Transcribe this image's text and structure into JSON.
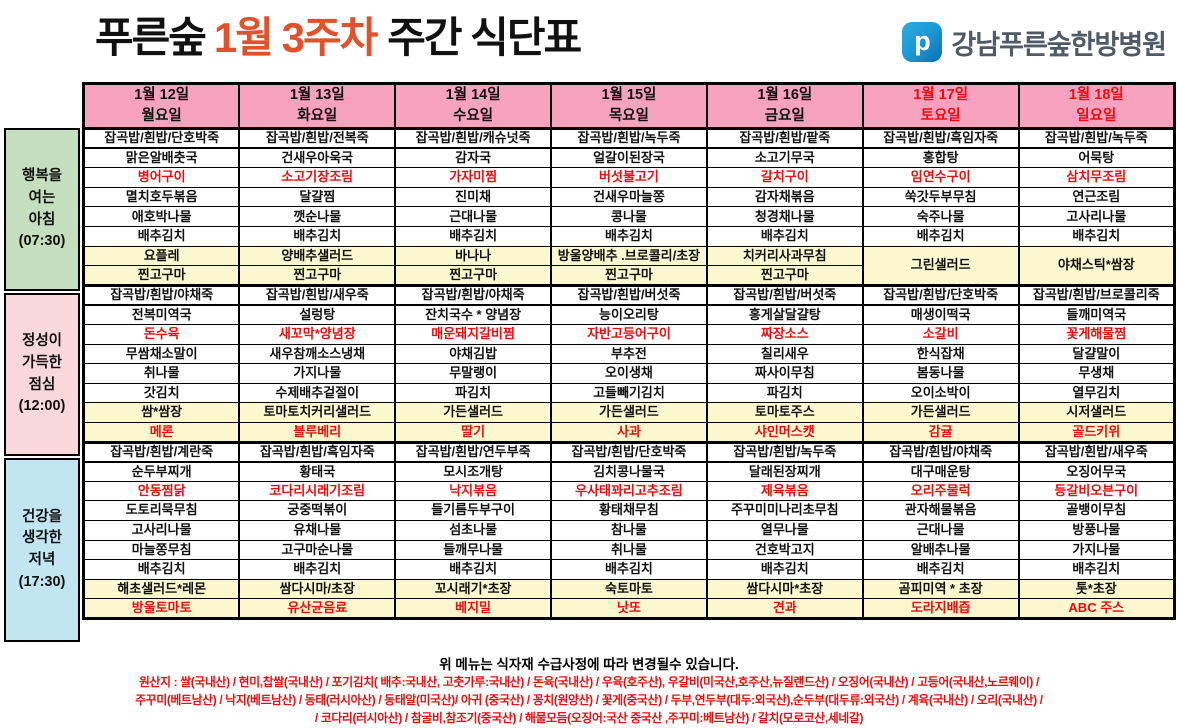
{
  "title": {
    "prefix": "푸른숲",
    "highlight": "1월 3주차",
    "suffix": "주간 식단표"
  },
  "logo": {
    "mark": "p",
    "text": "강남푸른숲한방병원"
  },
  "colors": {
    "header_pink": "#f7a3c0",
    "special_yellow": "#fbf8d0",
    "menu_red": "#f00c0c",
    "title_red": "#e2512b",
    "logo_blue": "#1d9bd8",
    "label_colors": [
      "#c5debe",
      "#f8d8dd",
      "#c1e5f1"
    ]
  },
  "days": [
    {
      "date": "1월 12일",
      "day": "월요일",
      "red": false
    },
    {
      "date": "1월 13일",
      "day": "화요일",
      "red": false
    },
    {
      "date": "1월 14일",
      "day": "수요일",
      "red": false
    },
    {
      "date": "1월 15일",
      "day": "목요일",
      "red": false
    },
    {
      "date": "1월 16일",
      "day": "금요일",
      "red": false
    },
    {
      "date": "1월 17일",
      "day": "토요일",
      "red": true
    },
    {
      "date": "1월 18일",
      "day": "일요일",
      "red": true
    }
  ],
  "meals": [
    {
      "name": "아침",
      "label_lines": [
        "행복을",
        "여는",
        "아침",
        "(07:30)"
      ],
      "cols": [
        {
          "rice": "잡곡밥/흰밥/단호박죽",
          "items": [
            [
              "맑은알배춧국",
              0
            ],
            [
              "병어구이",
              1
            ],
            [
              "멸치호두볶음",
              0
            ],
            [
              "애호박나물",
              0
            ],
            [
              "배추김치",
              0
            ]
          ],
          "specials": [
            [
              "요플레",
              0
            ],
            [
              "찐고구마",
              0
            ]
          ]
        },
        {
          "rice": "잡곡밥/흰밥/전복죽",
          "items": [
            [
              "건새우아욱국",
              0
            ],
            [
              "소고기장조림",
              1
            ],
            [
              "달걀찜",
              0
            ],
            [
              "깻순나물",
              0
            ],
            [
              "배추김치",
              0
            ]
          ],
          "specials": [
            [
              "양배추샐러드",
              0
            ],
            [
              "찐고구마",
              0
            ]
          ]
        },
        {
          "rice": "잡곡밥/흰밥/캐슈넛죽",
          "items": [
            [
              "감자국",
              0
            ],
            [
              "가자미찜",
              1
            ],
            [
              "진미채",
              0
            ],
            [
              "근대나물",
              0
            ],
            [
              "배추김치",
              0
            ]
          ],
          "specials": [
            [
              "바나나",
              0
            ],
            [
              "찐고구마",
              0
            ]
          ]
        },
        {
          "rice": "잡곡밥/흰밥/녹두죽",
          "items": [
            [
              "얼갈이된장국",
              0
            ],
            [
              "버섯불고기",
              1
            ],
            [
              "건새우마늘쫑",
              0
            ],
            [
              "콩나물",
              0
            ],
            [
              "배추김치",
              0
            ]
          ],
          "specials": [
            [
              "방울양배추 .브로콜리/초장",
              0
            ],
            [
              "찐고구마",
              0
            ]
          ]
        },
        {
          "rice": "잡곡밥/흰밥/팥죽",
          "items": [
            [
              "소고기무국",
              0
            ],
            [
              "갈치구이",
              1
            ],
            [
              "감자채볶음",
              0
            ],
            [
              "청경채나물",
              0
            ],
            [
              "배추김치",
              0
            ]
          ],
          "specials": [
            [
              "치커리사과무침",
              0
            ],
            [
              "찐고구마",
              0
            ]
          ]
        },
        {
          "rice": "잡곡밥/흰밥/흑임자죽",
          "items": [
            [
              "홍합탕",
              0
            ],
            [
              "임연수구이",
              1
            ],
            [
              "쑥갓두부무침",
              0
            ],
            [
              "숙주나물",
              0
            ],
            [
              "배추김치",
              0
            ]
          ],
          "specials": [
            [
              "그린샐러드",
              0
            ],
            [
              "",
              0
            ]
          ]
        },
        {
          "rice": "잡곡밥/흰밥/녹두죽",
          "items": [
            [
              "어묵탕",
              0
            ],
            [
              "삼치무조림",
              1
            ],
            [
              "연근조림",
              0
            ],
            [
              "고사리나물",
              0
            ],
            [
              "배추김치",
              0
            ]
          ],
          "specials": [
            [
              "야채스틱*쌈장",
              0
            ],
            [
              "",
              0
            ]
          ]
        }
      ]
    },
    {
      "name": "점심",
      "label_lines": [
        "정성이",
        "가득한",
        "점심",
        "(12:00)"
      ],
      "cols": [
        {
          "rice": "잡곡밥/흰밥/야채죽",
          "items": [
            [
              "전복미역국",
              0
            ],
            [
              "돈수육",
              1
            ],
            [
              "무쌈채소말이",
              0
            ],
            [
              "취나물",
              0
            ],
            [
              "갓김치",
              0
            ]
          ],
          "specials": [
            [
              "쌈*쌈장",
              0
            ],
            [
              "메론",
              1
            ]
          ]
        },
        {
          "rice": "잡곡밥/흰밥/새우죽",
          "items": [
            [
              "설렁탕",
              0
            ],
            [
              "새꼬막*양념장",
              1
            ],
            [
              "새우참깨소스냉채",
              0
            ],
            [
              "가지나물",
              0
            ],
            [
              "수제배추겉절이",
              0
            ]
          ],
          "specials": [
            [
              "토마토치커리샐러드",
              0
            ],
            [
              "블루베리",
              1
            ]
          ]
        },
        {
          "rice": "잡곡밥/흰밥/야채죽",
          "items": [
            [
              "잔치국수 * 양념장",
              0
            ],
            [
              "매운돼지갈비찜",
              1
            ],
            [
              "야채김밥",
              0
            ],
            [
              "무말랭이",
              0
            ],
            [
              "파김치",
              0
            ]
          ],
          "specials": [
            [
              "가든샐러드",
              0
            ],
            [
              "딸기",
              1
            ]
          ]
        },
        {
          "rice": "잡곡밥/흰밥/버섯죽",
          "items": [
            [
              "능이오리탕",
              0
            ],
            [
              "자반고등어구이",
              1
            ],
            [
              "부추전",
              0
            ],
            [
              "오이생채",
              0
            ],
            [
              "고들빼기김치",
              0
            ]
          ],
          "specials": [
            [
              "가든샐러드",
              0
            ],
            [
              "사과",
              1
            ]
          ]
        },
        {
          "rice": "잡곡밥/흰밥/버섯죽",
          "items": [
            [
              "홍게살달걀탕",
              0
            ],
            [
              "짜장소스",
              1
            ],
            [
              "칠리새우",
              0
            ],
            [
              "짜사이무침",
              0
            ],
            [
              "파김치",
              0
            ]
          ],
          "specials": [
            [
              "토마토주스",
              0
            ],
            [
              "샤인머스캣",
              1
            ]
          ]
        },
        {
          "rice": "잡곡밥/흰밥/단호박죽",
          "items": [
            [
              "매생이떡국",
              0
            ],
            [
              "소갈비",
              1
            ],
            [
              "한식잡채",
              0
            ],
            [
              "봄동나물",
              0
            ],
            [
              "오이소박이",
              0
            ]
          ],
          "specials": [
            [
              "가든샐러드",
              0
            ],
            [
              "감귤",
              1
            ]
          ]
        },
        {
          "rice": "잡곡밥/흰밥/브로콜리죽",
          "items": [
            [
              "들깨미역국",
              0
            ],
            [
              "꽃게해물찜",
              1
            ],
            [
              "달걀말이",
              0
            ],
            [
              "무생채",
              0
            ],
            [
              "열무김치",
              0
            ]
          ],
          "specials": [
            [
              "시저샐러드",
              0
            ],
            [
              "골드키위",
              1
            ]
          ]
        }
      ]
    },
    {
      "name": "저녁",
      "label_lines": [
        "건강을",
        "생각한",
        "저녁",
        "(17:30)"
      ],
      "cols": [
        {
          "rice": "잡곡밥/흰밥/계란죽",
          "items": [
            [
              "순두부찌개",
              0
            ],
            [
              "안동찜닭",
              1
            ],
            [
              "도토리묵무침",
              0
            ],
            [
              "고사리나물",
              0
            ],
            [
              "마늘쫑무침",
              0
            ],
            [
              "배추김치",
              0
            ]
          ],
          "specials": [
            [
              "해초샐러드*레몬",
              0
            ],
            [
              "방울토마토",
              1
            ]
          ]
        },
        {
          "rice": "잡곡밥/흰밥/흑임자죽",
          "items": [
            [
              "황태국",
              0
            ],
            [
              "코다리시래기조림",
              1
            ],
            [
              "궁중떡볶이",
              0
            ],
            [
              "유채나물",
              0
            ],
            [
              "고구마순나물",
              0
            ],
            [
              "배추김치",
              0
            ]
          ],
          "specials": [
            [
              "쌈다시마/초장",
              0
            ],
            [
              "유산균음료",
              1
            ]
          ]
        },
        {
          "rice": "잡곡밥/흰밥/연두부죽",
          "items": [
            [
              "모시조개탕",
              0
            ],
            [
              "낙지볶음",
              1
            ],
            [
              "들기름두부구이",
              0
            ],
            [
              "섬초나물",
              0
            ],
            [
              "들깨무나물",
              0
            ],
            [
              "배추김치",
              0
            ]
          ],
          "specials": [
            [
              "꼬시래기*초장",
              0
            ],
            [
              "베지밀",
              1
            ]
          ]
        },
        {
          "rice": "잡곡밥/흰밥/단호박죽",
          "items": [
            [
              "김치콩나물국",
              0
            ],
            [
              "우사태꽈리고추조림",
              1
            ],
            [
              "황태채무침",
              0
            ],
            [
              "참나물",
              0
            ],
            [
              "취나물",
              0
            ],
            [
              "배추김치",
              0
            ]
          ],
          "specials": [
            [
              "숙토마토",
              0
            ],
            [
              "낫또",
              1
            ]
          ]
        },
        {
          "rice": "잡곡밥/흰밥/녹두죽",
          "items": [
            [
              "달래된장찌개",
              0
            ],
            [
              "제육볶음",
              1
            ],
            [
              "주꾸미미나리초무침",
              0
            ],
            [
              "열무나물",
              0
            ],
            [
              "건호박고지",
              0
            ],
            [
              "배추김치",
              0
            ]
          ],
          "specials": [
            [
              "쌈다시마*초장",
              0
            ],
            [
              "견과",
              1
            ]
          ]
        },
        {
          "rice": "잡곡밥/흰밥/야채죽",
          "items": [
            [
              "대구매운탕",
              0
            ],
            [
              "오리주물럭",
              1
            ],
            [
              "관자해물볶음",
              0
            ],
            [
              "근대나물",
              0
            ],
            [
              "알배추나물",
              0
            ],
            [
              "배추김치",
              0
            ]
          ],
          "specials": [
            [
              "곰피미역 * 초장",
              0
            ],
            [
              "도라지배즙",
              1
            ]
          ]
        },
        {
          "rice": "잡곡밥/흰밥/새우죽",
          "items": [
            [
              "오징어무국",
              0
            ],
            [
              "등갈비오븐구이",
              1
            ],
            [
              "골뱅이무침",
              0
            ],
            [
              "방풍나물",
              0
            ],
            [
              "가지나물",
              0
            ],
            [
              "배추김치",
              0
            ]
          ],
          "specials": [
            [
              "톳*초장",
              0
            ],
            [
              "ABC 주스",
              1
            ]
          ]
        }
      ]
    }
  ],
  "footer": {
    "notice": "위 메뉴는 식자재 수급사정에 따라 변경될수 있습니다.",
    "origin_lines": [
      "원산지 : 쌀(국내산) / 현미,찹쌀(국내산) / 포기김치( 배추:국내산, 고춧가루:국내산) / 돈육(국내산) / 우육(호주산), 우갈비(미국산,호주산,뉴질랜드산) / 오징어(국내산) / 고등어(국내산,노르웨이) /",
      "주꾸미(베트남산) / 낙지(베트남산) / 동태(러시아산) / 동태알(미국산)/ 아귀 (중국산) / 꽁치(원양산) / 꽃게(중국산) / 두부,연두부(대두:외국산),순두부(대두류:외국산) / 계육(국내산) / 오리(국내산) /",
      "/ 코다리(러시아산) / 참굴비,참조기(중국산) / 해물모듬(오징어:국산 중국산 ,주꾸미:베트남산) / 갈치(모로코산,세네갈)"
    ]
  }
}
